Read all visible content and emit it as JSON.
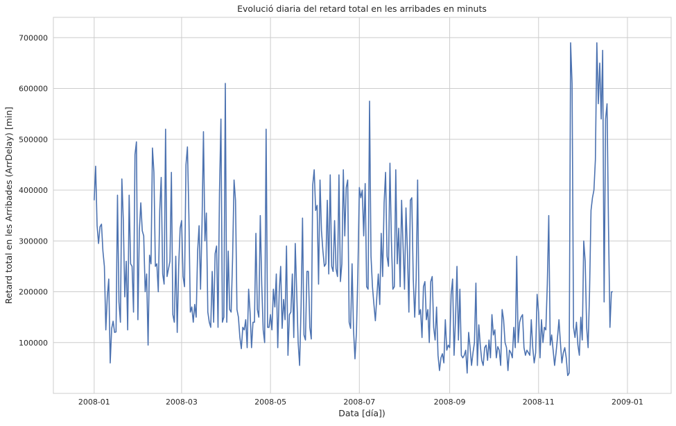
{
  "chart_data": {
    "type": "line",
    "title": "Evolució diaria del retard total en les arribades en minuts",
    "xlabel": "Data [día])",
    "ylabel": "Retard total en les Arribades (ArrDelay) [min]",
    "x_start": "2008-01-01",
    "x_range": [
      "2007-12-04",
      "2009-01-31"
    ],
    "ylim": [
      0,
      740000
    ],
    "grid": true,
    "x_tick_values": [
      "2008-01-01",
      "2008-03-01",
      "2008-05-01",
      "2008-07-01",
      "2008-09-01",
      "2008-11-01",
      "2009-01-01"
    ],
    "x_tick_labels": [
      "2008-01",
      "2008-03",
      "2008-05",
      "2008-07",
      "2008-09",
      "2008-11",
      "2009-01"
    ],
    "y_tick_values": [
      100000,
      200000,
      300000,
      400000,
      500000,
      600000,
      700000
    ],
    "y_tick_labels": [
      "100000",
      "200000",
      "300000",
      "400000",
      "500000",
      "600000",
      "700000"
    ],
    "series": [
      {
        "color": "#4c72b0",
        "x_step_days": 1,
        "values": [
          380000,
          447000,
          330000,
          295000,
          328000,
          333000,
          280000,
          250000,
          125000,
          190000,
          225000,
          60000,
          128000,
          142000,
          120000,
          121000,
          390000,
          180000,
          140000,
          422000,
          340000,
          190000,
          260000,
          125000,
          390000,
          255000,
          250000,
          160000,
          470000,
          495000,
          145000,
          320000,
          375000,
          320000,
          310000,
          200000,
          235000,
          95000,
          272000,
          255000,
          483000,
          435000,
          250000,
          255000,
          200000,
          360000,
          425000,
          235000,
          215000,
          520000,
          230000,
          245000,
          260000,
          435000,
          155000,
          140000,
          270000,
          120000,
          250000,
          325000,
          340000,
          230000,
          210000,
          450000,
          485000,
          350000,
          160000,
          170000,
          140000,
          175000,
          150000,
          280000,
          330000,
          205000,
          330000,
          515000,
          300000,
          355000,
          160000,
          140000,
          130000,
          240000,
          140000,
          275000,
          290000,
          130000,
          395000,
          540000,
          140000,
          150000,
          610000,
          140000,
          280000,
          165000,
          160000,
          265000,
          420000,
          380000,
          165000,
          150000,
          110000,
          88000,
          130000,
          125000,
          145000,
          90000,
          205000,
          160000,
          90000,
          140000,
          140000,
          315000,
          165000,
          150000,
          350000,
          215000,
          125000,
          100000,
          520000,
          130000,
          130000,
          155000,
          125000,
          205000,
          170000,
          235000,
          90000,
          200000,
          250000,
          128000,
          185000,
          145000,
          290000,
          75000,
          155000,
          160000,
          235000,
          110000,
          295000,
          200000,
          100000,
          55000,
          170000,
          345000,
          115000,
          105000,
          240000,
          240000,
          130000,
          107000,
          410000,
          440000,
          360000,
          370000,
          215000,
          420000,
          320000,
          280000,
          250000,
          255000,
          380000,
          235000,
          430000,
          250000,
          240000,
          340000,
          245000,
          230000,
          430000,
          220000,
          255000,
          440000,
          310000,
          405000,
          420000,
          140000,
          128000,
          255000,
          125000,
          68000,
          120000,
          240000,
          405000,
          385000,
          400000,
          310000,
          413000,
          210000,
          205000,
          575000,
          270000,
          210000,
          175000,
          143000,
          190000,
          235000,
          175000,
          315000,
          230000,
          375000,
          435000,
          270000,
          250000,
          453000,
          300000,
          205000,
          210000,
          440000,
          255000,
          325000,
          210000,
          380000,
          290000,
          205000,
          365000,
          280000,
          160000,
          380000,
          385000,
          225000,
          150000,
          225000,
          420000,
          155000,
          165000,
          110000,
          210000,
          220000,
          145000,
          165000,
          100000,
          220000,
          230000,
          130000,
          105000,
          170000,
          75000,
          45000,
          70000,
          78000,
          60000,
          145000,
          85000,
          95000,
          90000,
          195000,
          225000,
          75000,
          145000,
          250000,
          105000,
          205000,
          75000,
          70000,
          75000,
          85000,
          40000,
          120000,
          90000,
          55000,
          80000,
          100000,
          217000,
          55000,
          135000,
          95000,
          65000,
          55000,
          90000,
          95000,
          65000,
          105000,
          70000,
          155000,
          115000,
          125000,
          70000,
          92000,
          85000,
          55000,
          165000,
          145000,
          100000,
          90000,
          45000,
          85000,
          80000,
          70000,
          130000,
          90000,
          270000,
          100000,
          140000,
          150000,
          155000,
          90000,
          75000,
          85000,
          80000,
          75000,
          145000,
          90000,
          60000,
          80000,
          195000,
          160000,
          70000,
          145000,
          100000,
          130000,
          125000,
          215000,
          350000,
          95000,
          115000,
          85000,
          55000,
          80000,
          110000,
          145000,
          100000,
          60000,
          80000,
          90000,
          70000,
          35000,
          40000,
          690000,
          610000,
          130000,
          110000,
          140000,
          95000,
          75000,
          150000,
          105000,
          300000,
          260000,
          130000,
          90000,
          200000,
          360000,
          385000,
          400000,
          460000,
          690000,
          570000,
          650000,
          540000,
          675000,
          180000,
          540000,
          570000,
          330000,
          130000,
          200000,
          200000
        ]
      }
    ]
  }
}
